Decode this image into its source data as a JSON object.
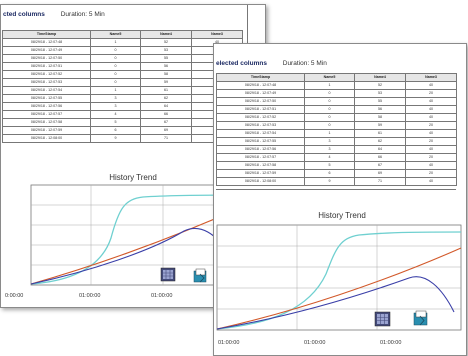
{
  "back_sheet": {
    "header_text": "cted columns",
    "duration": "Duration: 5 Min",
    "columns": [
      "TimeStamp",
      "Name5",
      "Name4",
      "Name3"
    ],
    "rows": [
      [
        "08/29/18 - 12:07:48",
        "1",
        "52",
        "40"
      ],
      [
        "08/29/18 - 12:07:49",
        "0",
        "53",
        "20"
      ],
      [
        "08/29/18 - 12:07:50",
        "0",
        "55",
        "40"
      ],
      [
        "08/29/18 - 12:07:51",
        "0",
        "56",
        "40"
      ],
      [
        "08/29/18 - 12:07:52",
        "0",
        "58",
        "40"
      ],
      [
        "08/29/18 - 12:07:53",
        "0",
        "59",
        "20"
      ],
      [
        "08/29/18 - 12:07:54",
        "1",
        "61",
        "40"
      ],
      [
        "08/29/18 - 12:07:55",
        "3",
        "62",
        "20"
      ],
      [
        "08/29/18 - 12:07:56",
        "3",
        "64",
        "40"
      ],
      [
        "08/29/18 - 12:07:57",
        "4",
        "66",
        "20"
      ],
      [
        "08/29/18 - 12:07:58",
        "5",
        "67",
        "40"
      ],
      [
        "08/29/18 - 12:07:59",
        "6",
        "69",
        "20"
      ],
      [
        "08/29/18 - 12:08:00",
        "9",
        "71",
        "40"
      ]
    ],
    "trend_title": "History Trend",
    "x_ticks": [
      "0:00:00",
      "01:00:00",
      "01:00:00"
    ]
  },
  "front_sheet": {
    "header_text": "elected columns",
    "duration": "Duration: 5 Min",
    "columns": [
      "TimeStamp",
      "Name5",
      "Name4",
      "Name3"
    ],
    "rows": [
      [
        "08/29/18 - 12:07:48",
        "1",
        "52",
        "40"
      ],
      [
        "08/29/18 - 12:07:49",
        "0",
        "53",
        "20"
      ],
      [
        "08/29/18 - 12:07:50",
        "0",
        "55",
        "40"
      ],
      [
        "08/29/18 - 12:07:51",
        "0",
        "56",
        "40"
      ],
      [
        "08/29/18 - 12:07:52",
        "0",
        "58",
        "40"
      ],
      [
        "08/29/18 - 12:07:53",
        "0",
        "59",
        "20"
      ],
      [
        "08/29/18 - 12:07:54",
        "1",
        "61",
        "40"
      ],
      [
        "08/29/18 - 12:07:55",
        "3",
        "62",
        "20"
      ],
      [
        "08/29/18 - 12:07:56",
        "3",
        "64",
        "40"
      ],
      [
        "08/29/18 - 12:07:57",
        "4",
        "66",
        "20"
      ],
      [
        "08/29/18 - 12:07:58",
        "5",
        "67",
        "40"
      ],
      [
        "08/29/18 - 12:07:59",
        "6",
        "69",
        "20"
      ],
      [
        "08/29/18 - 12:08:00",
        "9",
        "71",
        "40"
      ]
    ],
    "trend_title": "History Trend",
    "x_ticks": [
      "01:00:00",
      "01:00:00",
      "01:00:00"
    ]
  },
  "colors": {
    "cyan_series": "#6fd0d0",
    "orange_series": "#d2592a",
    "blue_series": "#3a3fa8",
    "border": "#777777"
  },
  "icons": [
    "grid-settings-icon",
    "export-icon"
  ]
}
